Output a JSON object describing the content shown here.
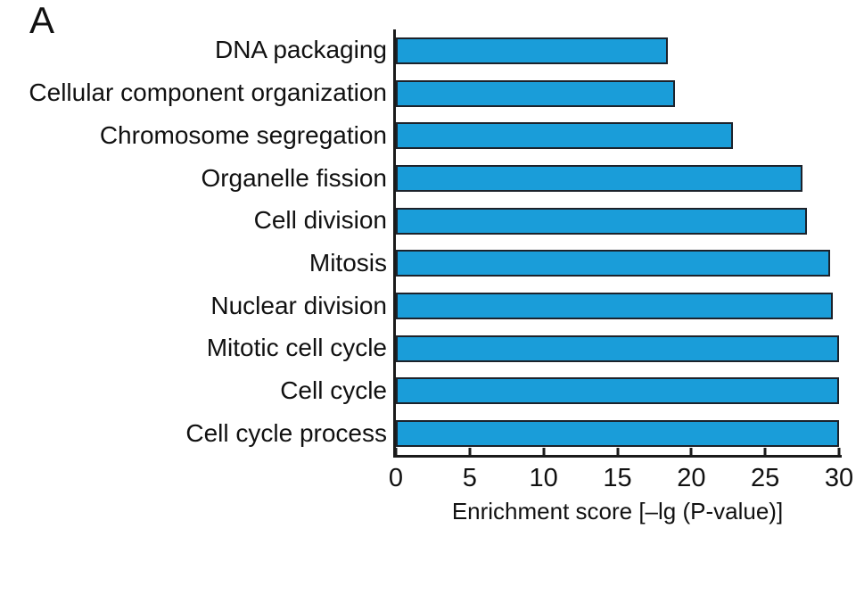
{
  "panel_label": "A",
  "chart_data": {
    "type": "bar",
    "orientation": "horizontal",
    "title": "",
    "categories": [
      "DNA packaging",
      "Cellular component organization",
      "Chromosome segregation",
      "Organelle fission",
      "Cell division",
      "Mitosis",
      "Nuclear division",
      "Mitotic cell cycle",
      "Cell cycle",
      "Cell cycle process"
    ],
    "values": [
      18.4,
      18.9,
      22.8,
      27.5,
      27.8,
      29.4,
      29.6,
      30,
      30,
      30
    ],
    "xlabel": "Enrichment score [–lg (P-value)]",
    "ylabel": "",
    "xlim": [
      0,
      30
    ],
    "x_ticks": [
      0,
      5,
      10,
      15,
      20,
      25,
      30
    ],
    "grid": false,
    "legend": false,
    "bar_color": "#1a9dd9",
    "bar_border_color": "#1c222b",
    "axis_color": "#1a1a1a"
  }
}
